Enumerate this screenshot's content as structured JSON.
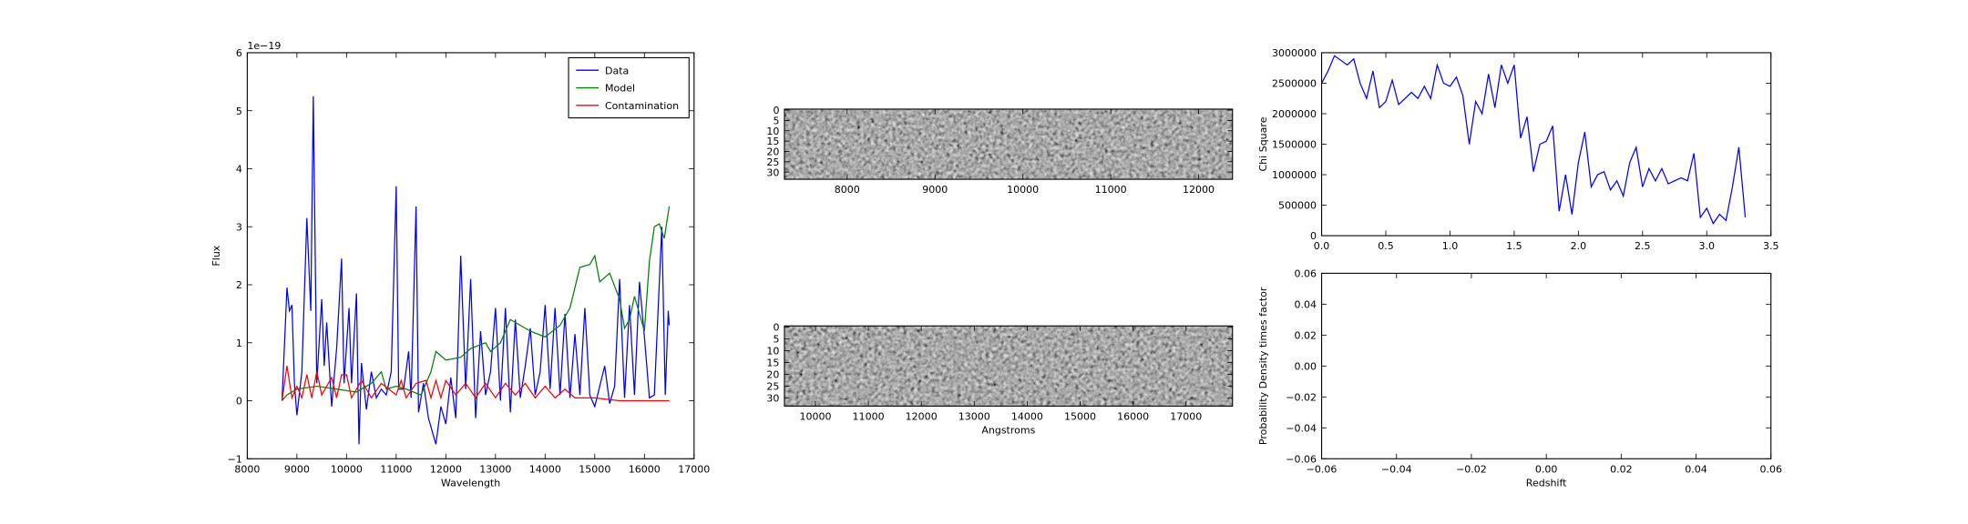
{
  "chart_data": [
    {
      "type": "line",
      "xlabel": "Wavelength",
      "ylabel": "Flux",
      "offset_text": "1e−19",
      "xlim": [
        8000,
        17000
      ],
      "xticks": [
        8000,
        9000,
        10000,
        11000,
        12000,
        13000,
        14000,
        15000,
        16000,
        17000
      ],
      "ylim": [
        -1,
        6
      ],
      "yticks": [
        {
          "value": -1,
          "label": "−1"
        },
        0,
        1,
        2,
        3,
        4,
        5,
        6
      ],
      "legend": "upper right",
      "series": [
        {
          "name": "Data",
          "color": "#0000ff",
          "x": [
            8700,
            8800,
            8850,
            8900,
            8950,
            9000,
            9100,
            9200,
            9280,
            9330,
            9400,
            9500,
            9550,
            9600,
            9700,
            9800,
            9900,
            9950,
            10050,
            10100,
            10200,
            10250,
            10300,
            10400,
            10500,
            10600,
            10700,
            10800,
            10900,
            11000,
            11050,
            11150,
            11250,
            11300,
            11400,
            11450,
            11550,
            11650,
            11800,
            11900,
            12000,
            12100,
            12200,
            12300,
            12400,
            12500,
            12600,
            12700,
            12800,
            12900,
            13000,
            13100,
            13200,
            13300,
            13400,
            13500,
            13600,
            13700,
            13800,
            13900,
            14000,
            14100,
            14200,
            14300,
            14400,
            14500,
            14600,
            14700,
            14800,
            14900,
            15000,
            15200,
            15300,
            15400,
            15500,
            15600,
            15700,
            15800,
            15900,
            16000,
            16100,
            16200,
            16350,
            16420,
            16480,
            16500
          ],
          "values": [
            0,
            1.95,
            1.55,
            1.65,
            0.3,
            -0.25,
            0.5,
            3.15,
            1.55,
            5.25,
            0.3,
            1.75,
            0.6,
            1.35,
            -0.1,
            0.9,
            2.45,
            0.3,
            1.6,
            0.3,
            1.85,
            -0.75,
            0.65,
            -0.15,
            0.5,
            0.05,
            0.2,
            0.1,
            0.5,
            3.7,
            0.2,
            0.2,
            0.85,
            0.05,
            3.35,
            -0.2,
            0.3,
            -0.3,
            -0.75,
            -0.1,
            -0.4,
            0.4,
            -0.3,
            2.5,
            0.2,
            2.1,
            -0.3,
            1.2,
            0.1,
            0.5,
            1.6,
            0,
            1.6,
            -0.2,
            1.4,
            0.05,
            0.6,
            1.25,
            0.1,
            0.5,
            1.65,
            0.2,
            1.6,
            0.1,
            1.5,
            0.05,
            1.15,
            0.1,
            1.6,
            0.1,
            -0.1,
            0.6,
            -0.05,
            0.25,
            2.1,
            0.05,
            1.65,
            0.1,
            2.05,
            1.1,
            0.05,
            0.1,
            3.0,
            0.1,
            1.55,
            1.3
          ]
        },
        {
          "name": "Model",
          "color": "#008000",
          "x": [
            8700,
            8800,
            9000,
            9400,
            9800,
            10200,
            10500,
            10700,
            10800,
            11000,
            11200,
            11500,
            11700,
            11800,
            12000,
            12300,
            12500,
            12800,
            12900,
            13100,
            13300,
            13500,
            13700,
            14000,
            14300,
            14500,
            14700,
            14900,
            15000,
            15100,
            15300,
            15500,
            15600,
            15700,
            15800,
            16000,
            16100,
            16200,
            16300,
            16400,
            16500
          ],
          "values": [
            0,
            0.1,
            0.2,
            0.25,
            0.2,
            0.15,
            0.3,
            0.5,
            0.2,
            0.25,
            0.2,
            0.1,
            0.5,
            0.85,
            0.7,
            0.75,
            0.9,
            1.0,
            0.85,
            1.0,
            1.4,
            1.3,
            1.2,
            1.1,
            1.3,
            1.6,
            2.3,
            2.35,
            2.5,
            2.05,
            2.2,
            1.75,
            1.25,
            1.4,
            1.8,
            1.2,
            2.4,
            3.0,
            3.05,
            2.8,
            3.35
          ]
        },
        {
          "name": "Contamination",
          "color": "#ff0000",
          "x": [
            8700,
            8800,
            8900,
            9000,
            9100,
            9200,
            9300,
            9400,
            9500,
            9700,
            9800,
            9900,
            10000,
            10100,
            10300,
            10500,
            10700,
            11000,
            11100,
            11200,
            11400,
            11600,
            11700,
            11800,
            11900,
            12000,
            12200,
            12400,
            12600,
            12800,
            13000,
            13200,
            13400,
            13600,
            13800,
            14000,
            14200,
            14400,
            14600,
            15000,
            15500,
            16500
          ],
          "values": [
            0,
            0.6,
            0.05,
            0.25,
            0.05,
            0.45,
            0.05,
            0.5,
            0.1,
            0.4,
            0.05,
            0.45,
            0.45,
            0.05,
            0.35,
            0.05,
            0.3,
            0.1,
            0.35,
            0.05,
            0.3,
            0.35,
            0.05,
            0.35,
            0.05,
            0.35,
            0.1,
            0.3,
            0.05,
            0.3,
            0.05,
            0.3,
            0.1,
            0.3,
            0.05,
            0.25,
            0.05,
            0.2,
            0.05,
            0.05,
            0,
            0
          ]
        }
      ]
    },
    {
      "type": "image",
      "xlim": [
        7286,
        12386
      ],
      "xticks": [
        8000,
        9000,
        10000,
        11000,
        12000
      ],
      "ylim": [
        33.5,
        -0.5
      ],
      "yticks": [
        0,
        5,
        10,
        15,
        20,
        25,
        30
      ]
    },
    {
      "type": "image",
      "xlabel": "Angstroms",
      "xlim": [
        9415,
        17878
      ],
      "xticks": [
        10000,
        11000,
        12000,
        13000,
        14000,
        15000,
        16000,
        17000
      ],
      "ylim": [
        33.5,
        -0.5
      ],
      "yticks": [
        0,
        5,
        10,
        15,
        20,
        25,
        30
      ]
    },
    {
      "type": "line",
      "ylabel": "Chi Square",
      "xlim": [
        0,
        3.5
      ],
      "xticks": [
        {
          "value": 0,
          "label": "0.0"
        },
        0.5,
        {
          "value": 1,
          "label": "1.0"
        },
        1.5,
        {
          "value": 2,
          "label": "2.0"
        },
        2.5,
        {
          "value": 3,
          "label": "3.0"
        },
        3.5
      ],
      "ylim": [
        0,
        3000000
      ],
      "yticks": [
        0,
        500000,
        1000000,
        1500000,
        2000000,
        2500000,
        3000000
      ],
      "series": [
        {
          "color": "#0000ff",
          "x": [
            0,
            0.05,
            0.1,
            0.2,
            0.25,
            0.3,
            0.35,
            0.4,
            0.45,
            0.5,
            0.55,
            0.6,
            0.7,
            0.75,
            0.8,
            0.85,
            0.9,
            0.95,
            1.0,
            1.05,
            1.1,
            1.15,
            1.2,
            1.25,
            1.3,
            1.35,
            1.4,
            1.45,
            1.5,
            1.55,
            1.6,
            1.65,
            1.7,
            1.75,
            1.8,
            1.85,
            1.9,
            1.95,
            2.0,
            2.05,
            2.1,
            2.15,
            2.2,
            2.25,
            2.3,
            2.35,
            2.4,
            2.45,
            2.5,
            2.55,
            2.6,
            2.65,
            2.7,
            2.8,
            2.85,
            2.9,
            2.95,
            3.0,
            3.05,
            3.1,
            3.15,
            3.2,
            3.25,
            3.3
          ],
          "values": [
            2500000,
            2700000,
            2950000,
            2800000,
            2900000,
            2500000,
            2250000,
            2700000,
            2100000,
            2200000,
            2550000,
            2150000,
            2350000,
            2250000,
            2450000,
            2250000,
            2800000,
            2500000,
            2450000,
            2600000,
            2300000,
            1500000,
            2200000,
            2000000,
            2650000,
            2100000,
            2800000,
            2500000,
            2800000,
            1600000,
            1950000,
            1050000,
            1500000,
            1550000,
            1800000,
            400000,
            1000000,
            350000,
            1200000,
            1700000,
            800000,
            1000000,
            1050000,
            750000,
            900000,
            650000,
            1200000,
            1450000,
            800000,
            1100000,
            900000,
            1100000,
            850000,
            950000,
            900000,
            1350000,
            300000,
            450000,
            200000,
            350000,
            250000,
            800000,
            1450000,
            300000
          ]
        }
      ]
    },
    {
      "type": "line",
      "xlabel": "Redshift",
      "ylabel": "Probability Density times factor",
      "xlim": [
        -0.06,
        0.06
      ],
      "xticks": [
        {
          "value": -0.06,
          "label": "−0.06"
        },
        {
          "value": -0.04,
          "label": "−0.04"
        },
        {
          "value": -0.02,
          "label": "−0.02"
        },
        {
          "value": 0,
          "label": "0.00"
        },
        0.02,
        0.04,
        0.06
      ],
      "ylim": [
        -0.06,
        0.06
      ],
      "yticks": [
        {
          "value": -0.06,
          "label": "−0.06"
        },
        {
          "value": -0.04,
          "label": "−0.04"
        },
        {
          "value": -0.02,
          "label": "−0.02"
        },
        {
          "value": 0,
          "label": "0.00"
        },
        0.02,
        0.04,
        0.06
      ],
      "series": []
    }
  ]
}
